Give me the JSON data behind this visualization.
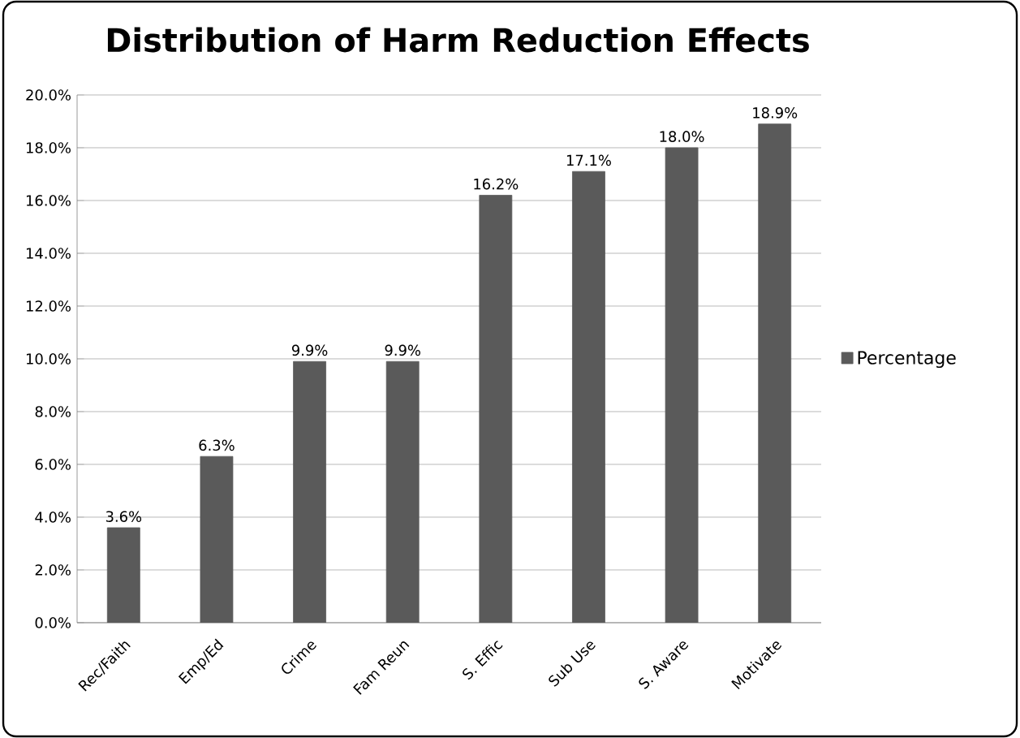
{
  "chart_data": {
    "type": "bar",
    "title": "Distribution of Harm Reduction Effects",
    "categories": [
      "Rec/Faith",
      "Emp/Ed",
      "Crime",
      "Fam Reun",
      "S. Effic",
      "Sub Use",
      "S. Aware",
      "Motivate"
    ],
    "series": [
      {
        "name": "Percentage",
        "color": "#5a5a5a",
        "values": [
          3.6,
          6.3,
          9.9,
          9.9,
          16.2,
          17.1,
          18.0,
          18.9
        ],
        "value_labels": [
          "3.6%",
          "6.3%",
          "9.9%",
          "9.9%",
          "16.2%",
          "17.1%",
          "18.0%",
          "18.9%"
        ]
      }
    ],
    "ylim": [
      0,
      20
    ],
    "yticks": [
      {
        "value": 0,
        "label": "0.0%"
      },
      {
        "value": 2,
        "label": "2.0%"
      },
      {
        "value": 4,
        "label": "4.0%"
      },
      {
        "value": 6,
        "label": "6.0%"
      },
      {
        "value": 8,
        "label": "8.0%"
      },
      {
        "value": 10,
        "label": "10.0%"
      },
      {
        "value": 12,
        "label": "12.0%"
      },
      {
        "value": 14,
        "label": "14.0%"
      },
      {
        "value": 16,
        "label": "16.0%"
      },
      {
        "value": 18,
        "label": "18.0%"
      },
      {
        "value": 20,
        "label": "20.0%"
      }
    ],
    "grid": "y",
    "legend": "right"
  }
}
